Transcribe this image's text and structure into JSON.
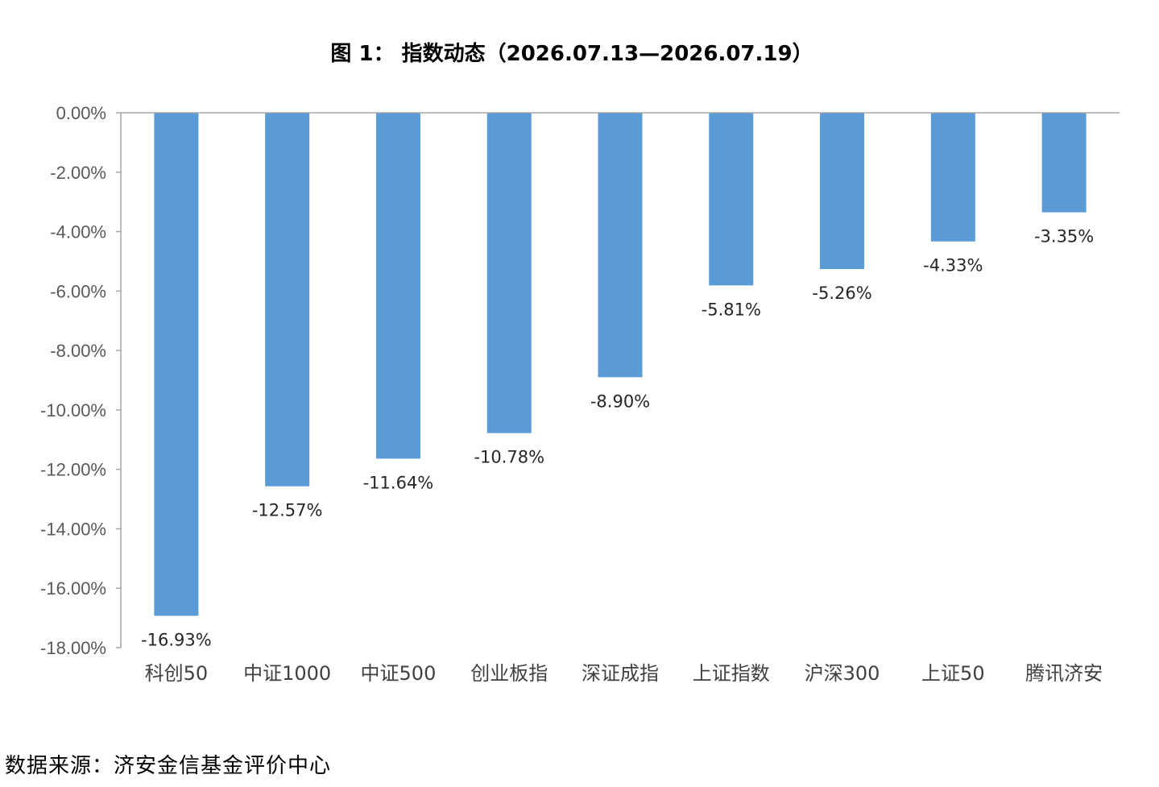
{
  "chart_data": {
    "type": "bar",
    "title": "图 1： 指数动态（2026.07.13—2026.07.19）",
    "xlabel": "",
    "ylabel": "",
    "categories": [
      "科创50",
      "中证1000",
      "中证500",
      "创业板指",
      "深证成指",
      "上证指数",
      "沪深300",
      "上证50",
      "腾讯济安"
    ],
    "values": [
      -16.93,
      -12.57,
      -11.64,
      -10.78,
      -8.9,
      -5.81,
      -5.26,
      -4.33,
      -3.35
    ],
    "data_labels": [
      "-16.93%",
      "-12.57%",
      "-11.64%",
      "-10.78%",
      "-8.90%",
      "-5.81%",
      "-5.26%",
      "-4.33%",
      "-3.35%"
    ],
    "ylim": [
      -18,
      0
    ],
    "y_ticks": [
      0,
      -2,
      -4,
      -6,
      -8,
      -10,
      -12,
      -14,
      -16,
      -18
    ],
    "y_tick_labels": [
      "0.00%",
      "-2.00%",
      "-4.00%",
      "-6.00%",
      "-8.00%",
      "-10.00%",
      "-12.00%",
      "-14.00%",
      "-16.00%",
      "-18.00%"
    ],
    "grid": false,
    "legend": "none",
    "bar_color": "#5B9BD5",
    "axis_color": "#A6A6A6"
  },
  "source": "数据来源：济安金信基金评价中心"
}
